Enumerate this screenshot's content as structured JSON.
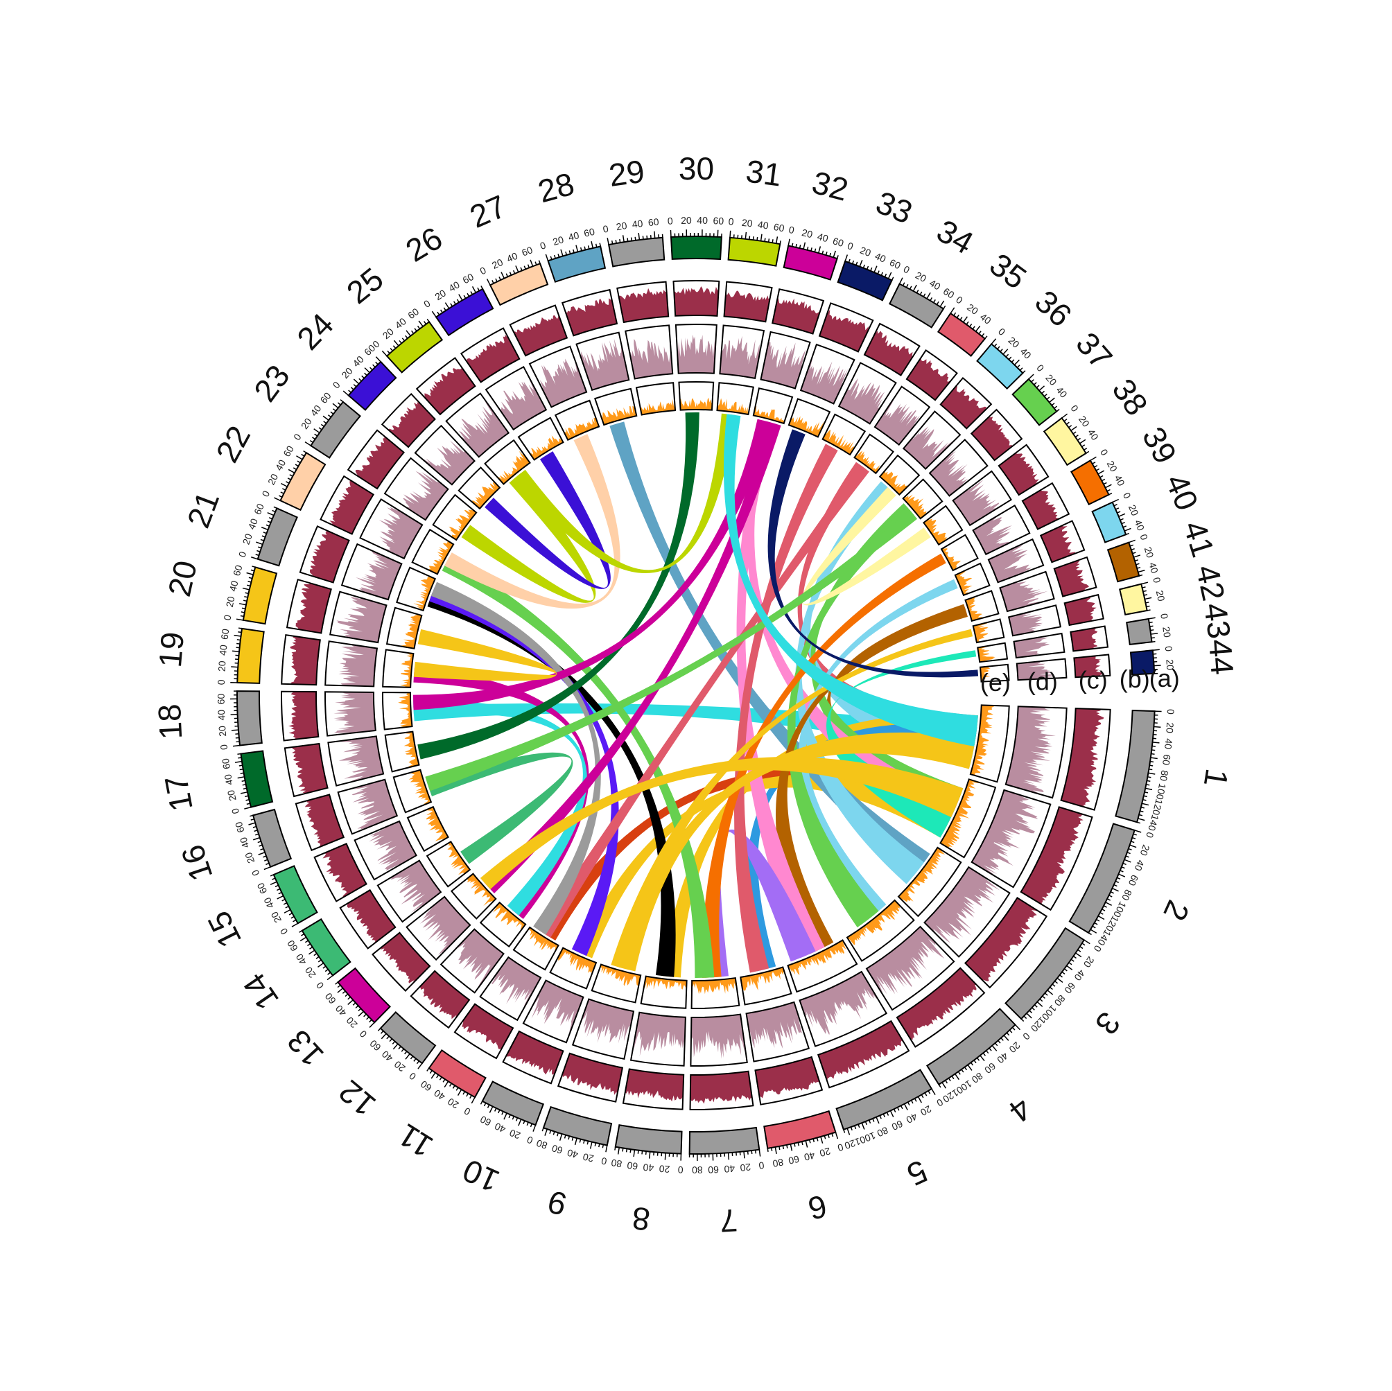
{
  "chart_data": {
    "type": "chord",
    "chromosomes": [
      {
        "id": "1",
        "length": 145,
        "color": "#9b9b9b"
      },
      {
        "id": "2",
        "length": 145,
        "color": "#9b9b9b"
      },
      {
        "id": "3",
        "length": 130,
        "color": "#9b9b9b"
      },
      {
        "id": "4",
        "length": 125,
        "color": "#9b9b9b"
      },
      {
        "id": "5",
        "length": 125,
        "color": "#9b9b9b"
      },
      {
        "id": "6",
        "length": 90,
        "color": "#e05a6b"
      },
      {
        "id": "7",
        "length": 90,
        "color": "#9b9b9b"
      },
      {
        "id": "8",
        "length": 85,
        "color": "#9b9b9b"
      },
      {
        "id": "9",
        "length": 85,
        "color": "#9b9b9b"
      },
      {
        "id": "10",
        "length": 75,
        "color": "#9b9b9b"
      },
      {
        "id": "11",
        "length": 70,
        "color": "#e05a6b"
      },
      {
        "id": "12",
        "length": 70,
        "color": "#9b9b9b"
      },
      {
        "id": "13",
        "length": 70,
        "color": "#cc0099"
      },
      {
        "id": "14",
        "length": 70,
        "color": "#3cba74"
      },
      {
        "id": "15",
        "length": 70,
        "color": "#3cba74"
      },
      {
        "id": "16",
        "length": 70,
        "color": "#9b9b9b"
      },
      {
        "id": "17",
        "length": 70,
        "color": "#006a2a"
      },
      {
        "id": "18",
        "length": 70,
        "color": "#9b9b9b"
      },
      {
        "id": "19",
        "length": 70,
        "color": "#f5c518"
      },
      {
        "id": "20",
        "length": 70,
        "color": "#f5c518"
      },
      {
        "id": "21",
        "length": 70,
        "color": "#9b9b9b"
      },
      {
        "id": "22",
        "length": 70,
        "color": "#ffd0a8"
      },
      {
        "id": "23",
        "length": 70,
        "color": "#9b9b9b"
      },
      {
        "id": "24",
        "length": 60,
        "color": "#3b10d6"
      },
      {
        "id": "25",
        "length": 70,
        "color": "#bcd600"
      },
      {
        "id": "26",
        "length": 70,
        "color": "#3b10d6"
      },
      {
        "id": "27",
        "length": 70,
        "color": "#ffd0a8"
      },
      {
        "id": "28",
        "length": 70,
        "color": "#5fa3c4"
      },
      {
        "id": "29",
        "length": 70,
        "color": "#9b9b9b"
      },
      {
        "id": "30",
        "length": 65,
        "color": "#006a2a"
      },
      {
        "id": "31",
        "length": 65,
        "color": "#bcd600"
      },
      {
        "id": "32",
        "length": 65,
        "color": "#cc0099"
      },
      {
        "id": "33",
        "length": 65,
        "color": "#0a1a66"
      },
      {
        "id": "34",
        "length": 65,
        "color": "#9b9b9b"
      },
      {
        "id": "35",
        "length": 55,
        "color": "#e05a6b"
      },
      {
        "id": "36",
        "length": 55,
        "color": "#7dd6ee"
      },
      {
        "id": "37",
        "length": 55,
        "color": "#66d04f"
      },
      {
        "id": "38",
        "length": 55,
        "color": "#fff6a0"
      },
      {
        "id": "39",
        "length": 50,
        "color": "#f56f00"
      },
      {
        "id": "40",
        "length": 45,
        "color": "#7dd6ee"
      },
      {
        "id": "41",
        "length": 45,
        "color": "#b36200"
      },
      {
        "id": "42",
        "length": 35,
        "color": "#fff6a0"
      },
      {
        "id": "43",
        "length": 30,
        "color": "#9b9b9b"
      },
      {
        "id": "44",
        "length": 30,
        "color": "#0a1a66"
      }
    ],
    "track_labels": [
      "(e)",
      "(d)",
      "(c)",
      "(b)",
      "(a)"
    ],
    "track_colors": {
      "b": "#9b2f4a",
      "c": "#b98da0",
      "d": "#ff9a1a"
    },
    "links": [
      {
        "from": "1",
        "to": "35",
        "color": "#e05a6b"
      },
      {
        "from": "1",
        "to": "18",
        "color": "#2fdde0"
      },
      {
        "from": "1",
        "to": "36",
        "color": "#7dd6ee"
      },
      {
        "from": "1",
        "to": "8",
        "color": "#f5c518"
      },
      {
        "from": "1",
        "to": "6",
        "color": "#2e9ae0"
      },
      {
        "from": "2",
        "to": "41",
        "color": "#b36200"
      },
      {
        "from": "2",
        "to": "11",
        "color": "#d84010"
      },
      {
        "from": "2",
        "to": "10",
        "color": "#f5c518"
      },
      {
        "from": "2",
        "to": "37",
        "color": "#66d04f"
      },
      {
        "from": "2",
        "to": "32",
        "color": "#ff88d0"
      },
      {
        "from": "2",
        "to": "43",
        "color": "#1de8b8"
      },
      {
        "from": "3",
        "to": "28",
        "color": "#5fa3c4"
      },
      {
        "from": "3",
        "to": "36",
        "color": "#7dd6ee"
      },
      {
        "from": "4",
        "to": "40",
        "color": "#7dd6ee"
      },
      {
        "from": "4",
        "to": "37",
        "color": "#66d04f"
      },
      {
        "from": "5",
        "to": "41",
        "color": "#b36200"
      },
      {
        "from": "5",
        "to": "32",
        "color": "#ff88d0"
      },
      {
        "from": "5",
        "to": "7",
        "color": "#a36df5"
      },
      {
        "from": "6",
        "to": "34",
        "color": "#e05a6b"
      },
      {
        "from": "7",
        "to": "39",
        "color": "#f56f00"
      },
      {
        "from": "7",
        "to": "22",
        "color": "#66d04f"
      },
      {
        "from": "8",
        "to": "21",
        "color": "#000000"
      },
      {
        "from": "9",
        "to": "1",
        "color": "#f5c518"
      },
      {
        "from": "9",
        "to": "42",
        "color": "#f5c518"
      },
      {
        "from": "10",
        "to": "21",
        "color": "#5a1af5"
      },
      {
        "from": "11",
        "to": "35",
        "color": "#e05a6b"
      },
      {
        "from": "11",
        "to": "21",
        "color": "#9b9b9b"
      },
      {
        "from": "12",
        "to": "19",
        "color": "#cc0099"
      },
      {
        "from": "12",
        "to": "18",
        "color": "#2fdde0"
      },
      {
        "from": "13",
        "to": "32",
        "color": "#cc0099"
      },
      {
        "from": "13",
        "to": "2",
        "color": "#f5c518"
      },
      {
        "from": "14",
        "to": "16",
        "color": "#3cba74"
      },
      {
        "from": "17",
        "to": "30",
        "color": "#006a2a"
      },
      {
        "from": "18",
        "to": "32",
        "color": "#cc0099"
      },
      {
        "from": "19",
        "to": "20",
        "color": "#f5c518"
      },
      {
        "from": "22",
        "to": "27",
        "color": "#ffd0a8"
      },
      {
        "from": "23",
        "to": "25",
        "color": "#bcd600"
      },
      {
        "from": "24",
        "to": "26",
        "color": "#3b10d6"
      },
      {
        "from": "31",
        "to": "25",
        "color": "#bcd600"
      },
      {
        "from": "33",
        "to": "44",
        "color": "#0a1a66"
      },
      {
        "from": "36",
        "to": "38",
        "color": "#fff6a0"
      },
      {
        "from": "16",
        "to": "37",
        "color": "#66d04f"
      },
      {
        "from": "31",
        "to": "1",
        "color": "#2fdde0"
      }
    ]
  }
}
